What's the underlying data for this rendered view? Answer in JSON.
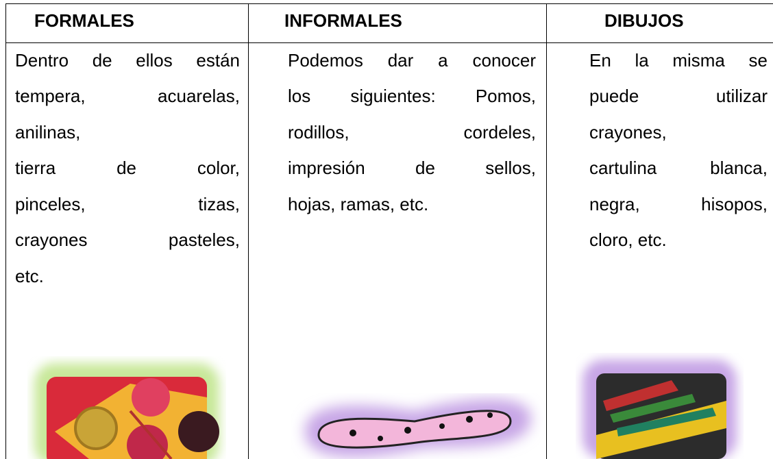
{
  "table": {
    "headers": [
      "FORMALES",
      "INFORMALES",
      "DIBUJOS"
    ],
    "columns": [
      [
        "Dentro de ellos están",
        "tempera, acuarelas,",
        "anilinas,",
        "tierra de color,",
        "pinceles, tizas,",
        "crayones pasteles,",
        "etc."
      ],
      [
        "Podemos dar a conocer",
        "los siguientes: Pomos,",
        "rodillos, cordeles,",
        "impresión de sellos,",
        "hojas, ramas, etc."
      ],
      [
        "En la misma se",
        "puede utilizar",
        "crayones,",
        "cartulina blanca,",
        "negra, hisopos,",
        "cloro, etc."
      ]
    ]
  }
}
